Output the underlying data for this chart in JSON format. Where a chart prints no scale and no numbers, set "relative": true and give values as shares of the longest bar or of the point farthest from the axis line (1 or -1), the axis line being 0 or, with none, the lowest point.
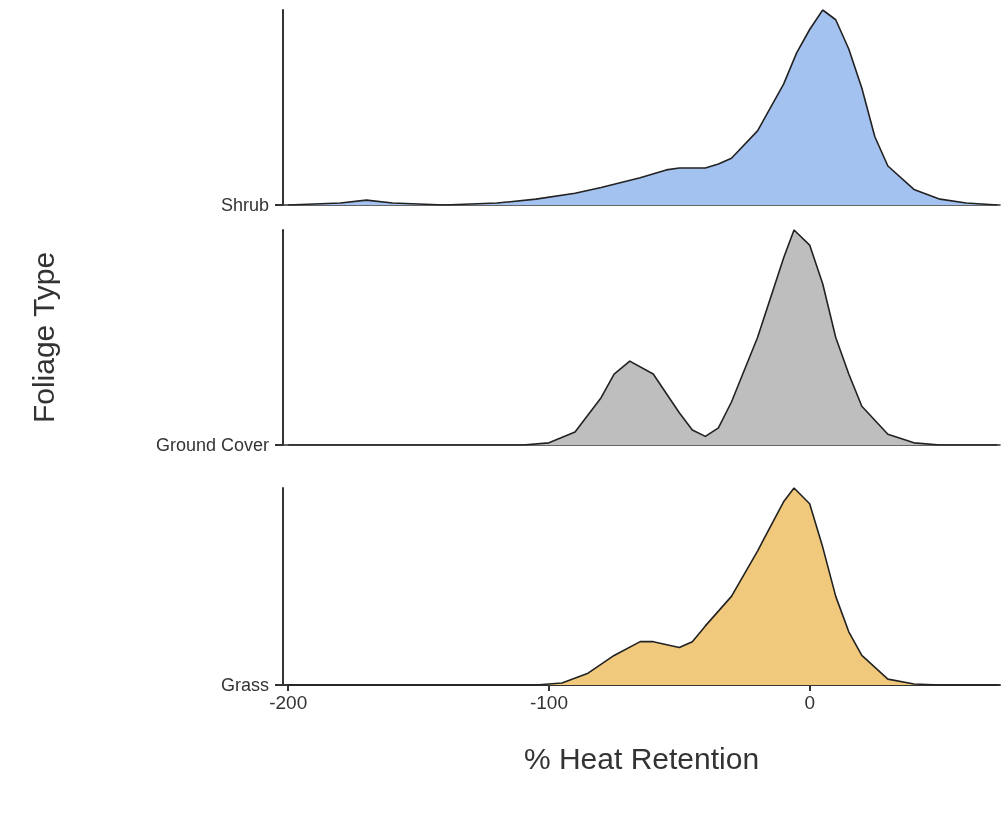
{
  "chart_data": [
    {
      "type": "area",
      "relative": true,
      "xlim": [
        -202,
        73
      ],
      "xticks": [
        -200,
        -100,
        0
      ],
      "tick_labels": false,
      "x": [
        -200,
        -180,
        -170,
        -160,
        -140,
        -120,
        -105,
        -90,
        -80,
        -65,
        -55,
        -50,
        -45,
        -40,
        -35,
        -30,
        -20,
        -10,
        -5,
        0,
        5,
        10,
        15,
        20,
        25,
        30,
        40,
        50,
        60,
        72
      ],
      "series": [
        {
          "name": "Shrub",
          "color": "#a4c2f0",
          "values": [
            0,
            0.01,
            0.025,
            0.01,
            0,
            0.01,
            0.03,
            0.06,
            0.09,
            0.14,
            0.18,
            0.19,
            0.19,
            0.19,
            0.21,
            0.24,
            0.38,
            0.62,
            0.78,
            0.9,
            1.0,
            0.95,
            0.8,
            0.6,
            0.35,
            0.2,
            0.08,
            0.03,
            0.01,
            0
          ]
        }
      ]
    },
    {
      "type": "area",
      "relative": true,
      "xlim": [
        -202,
        73
      ],
      "xticks": [
        -200,
        -100,
        0
      ],
      "tick_labels": false,
      "ylabel": "Foliage Type",
      "x": [
        -200,
        -110,
        -100,
        -90,
        -80,
        -75,
        -69,
        -60,
        -50,
        -45,
        -40,
        -35,
        -30,
        -20,
        -10,
        -6,
        0,
        5,
        10,
        15,
        20,
        30,
        40,
        50,
        72
      ],
      "series": [
        {
          "name": "Ground Cover",
          "color": "#bebebe",
          "values": [
            0,
            0,
            0.01,
            0.06,
            0.22,
            0.33,
            0.39,
            0.33,
            0.15,
            0.07,
            0.04,
            0.08,
            0.2,
            0.5,
            0.87,
            1.0,
            0.93,
            0.75,
            0.5,
            0.33,
            0.18,
            0.05,
            0.01,
            0,
            0
          ]
        }
      ]
    },
    {
      "type": "area",
      "relative": true,
      "xlim": [
        -202,
        73
      ],
      "xticks": [
        -200,
        -100,
        0
      ],
      "tick_labels": "x",
      "xlabel": "% Heat Retention",
      "x": [
        -200,
        -105,
        -95,
        -85,
        -75,
        -65,
        -60,
        -50,
        -45,
        -40,
        -30,
        -20,
        -10,
        -6,
        0,
        5,
        10,
        15,
        20,
        30,
        40,
        50,
        72
      ],
      "series": [
        {
          "name": "Grass",
          "color": "#f0c97c",
          "values": [
            0,
            0,
            0.01,
            0.06,
            0.15,
            0.22,
            0.22,
            0.19,
            0.22,
            0.3,
            0.45,
            0.68,
            0.93,
            1.0,
            0.92,
            0.7,
            0.45,
            0.27,
            0.15,
            0.03,
            0.005,
            0,
            0
          ]
        }
      ]
    }
  ]
}
